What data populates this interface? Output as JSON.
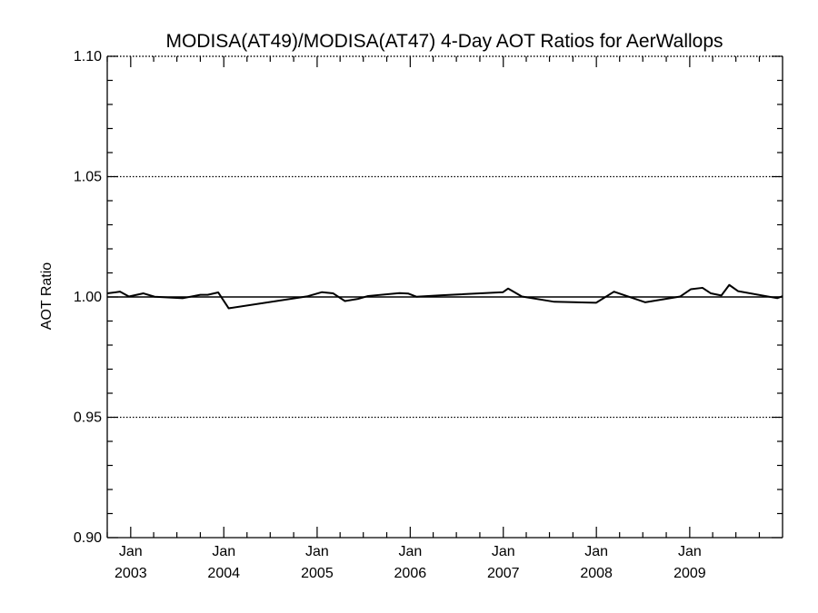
{
  "chart_data": {
    "type": "line",
    "title": "MODISA(AT49)/MODISA(AT47) 4-Day AOT Ratios for AerWallops",
    "ylabel": "AOT Ratio",
    "xlabel": "",
    "ylim": [
      0.9,
      1.1
    ],
    "xlim": [
      "2002-10-01",
      "2009-12-31"
    ],
    "y_ticks": [
      "0.90",
      "0.95",
      "1.00",
      "1.05",
      "1.10"
    ],
    "y_gridlines": [
      0.95,
      1.0,
      1.05,
      1.1
    ],
    "x_ticks": [
      {
        "month": "Jan",
        "year": "2003",
        "date": "2003-01-01"
      },
      {
        "month": "Jan",
        "year": "2004",
        "date": "2004-01-01"
      },
      {
        "month": "Jan",
        "year": "2005",
        "date": "2005-01-01"
      },
      {
        "month": "Jan",
        "year": "2006",
        "date": "2006-01-01"
      },
      {
        "month": "Jan",
        "year": "2007",
        "date": "2007-01-01"
      },
      {
        "month": "Jan",
        "year": "2008",
        "date": "2008-01-01"
      },
      {
        "month": "Jan",
        "year": "2009",
        "date": "2009-01-01"
      }
    ],
    "reference_line": 1.0,
    "grid": "horizontal dotted",
    "series": [
      {
        "color": "#000000",
        "points": [
          {
            "x": "2002-10-01",
            "y": 1.0015
          },
          {
            "x": "2002-11-20",
            "y": 1.0022
          },
          {
            "x": "2002-12-25",
            "y": 1.0002
          },
          {
            "x": "2003-02-20",
            "y": 1.0015
          },
          {
            "x": "2003-04-05",
            "y": 1.0001
          },
          {
            "x": "2003-07-25",
            "y": 0.9995
          },
          {
            "x": "2003-10-01",
            "y": 1.0009
          },
          {
            "x": "2003-10-30",
            "y": 1.0009
          },
          {
            "x": "2003-12-10",
            "y": 1.0019
          },
          {
            "x": "2004-01-20",
            "y": 0.9953
          },
          {
            "x": "2004-11-25",
            "y": 1.0003
          },
          {
            "x": "2005-01-20",
            "y": 1.002
          },
          {
            "x": "2005-03-05",
            "y": 1.0015
          },
          {
            "x": "2005-04-20",
            "y": 0.9983
          },
          {
            "x": "2005-06-10",
            "y": 0.9992
          },
          {
            "x": "2005-07-20",
            "y": 1.0004
          },
          {
            "x": "2005-11-20",
            "y": 1.0016
          },
          {
            "x": "2005-12-25",
            "y": 1.0014
          },
          {
            "x": "2006-01-25",
            "y": 1.0001
          },
          {
            "x": "2006-05-05",
            "y": 1.0007
          },
          {
            "x": "2006-12-31",
            "y": 1.002
          },
          {
            "x": "2007-01-20",
            "y": 1.0035
          },
          {
            "x": "2007-03-15",
            "y": 1.0002
          },
          {
            "x": "2007-07-20",
            "y": 0.998
          },
          {
            "x": "2007-12-31",
            "y": 0.9976
          },
          {
            "x": "2008-03-10",
            "y": 1.0022
          },
          {
            "x": "2008-07-10",
            "y": 0.9978
          },
          {
            "x": "2008-11-25",
            "y": 1.0002
          },
          {
            "x": "2009-01-05",
            "y": 1.0032
          },
          {
            "x": "2009-02-20",
            "y": 1.0038
          },
          {
            "x": "2009-03-25",
            "y": 1.0015
          },
          {
            "x": "2009-05-05",
            "y": 1.0006
          },
          {
            "x": "2009-06-05",
            "y": 1.005
          },
          {
            "x": "2009-07-10",
            "y": 1.0024
          },
          {
            "x": "2009-12-10",
            "y": 0.9995
          },
          {
            "x": "2009-12-31",
            "y": 1.0003
          }
        ]
      }
    ]
  }
}
